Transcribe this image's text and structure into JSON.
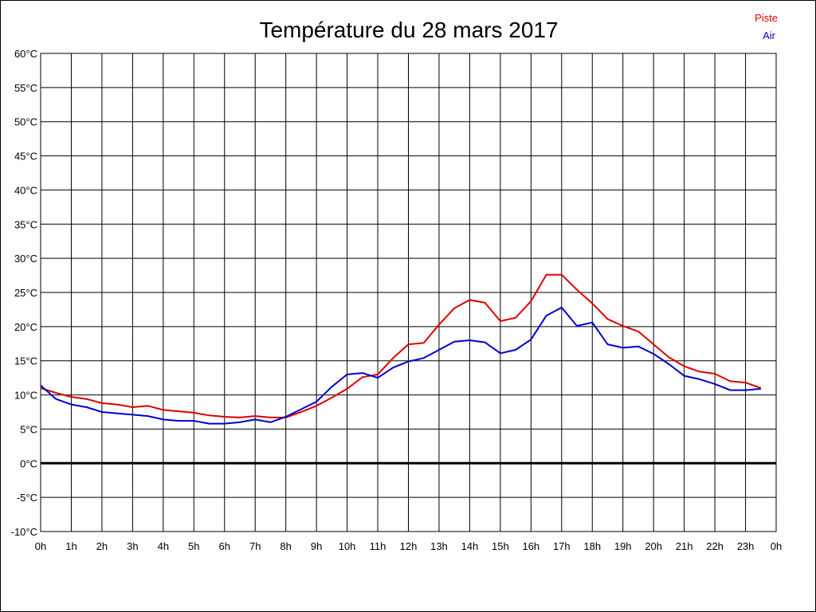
{
  "chart_data": {
    "type": "line",
    "title": "Température du 28 mars 2017",
    "xlabel": "",
    "ylabel": "",
    "x_tick_labels": [
      "0h",
      "1h",
      "2h",
      "3h",
      "4h",
      "5h",
      "6h",
      "7h",
      "8h",
      "9h",
      "10h",
      "11h",
      "12h",
      "13h",
      "14h",
      "15h",
      "16h",
      "17h",
      "18h",
      "19h",
      "20h",
      "21h",
      "22h",
      "23h",
      "0h"
    ],
    "y_tick_labels": [
      "60°C",
      "55°C",
      "50°C",
      "45°C",
      "40°C",
      "35°C",
      "30°C",
      "25°C",
      "20°C",
      "15°C",
      "10°C",
      "5°C",
      "0°C",
      "-5°C",
      "-10°C"
    ],
    "xlim": [
      0,
      24
    ],
    "ylim": [
      -10,
      60
    ],
    "y_ticks": [
      60,
      55,
      50,
      45,
      40,
      35,
      30,
      25,
      20,
      15,
      10,
      5,
      0,
      -5,
      -10
    ],
    "grid": true,
    "legend_placement": "top-right",
    "zero_line": true,
    "series": [
      {
        "name": "Piste",
        "color": "#dd0000",
        "x": [
          0,
          0.5,
          1,
          1.5,
          2,
          2.5,
          3,
          3.5,
          4,
          4.5,
          5,
          5.5,
          6,
          6.5,
          7,
          7.5,
          8,
          8.5,
          9,
          9.5,
          10,
          10.5,
          11,
          11.5,
          12,
          12.5,
          13,
          13.5,
          14,
          14.5,
          15,
          15.5,
          16,
          16.5,
          17,
          17.5,
          18,
          18.5,
          19,
          19.5,
          20,
          20.5,
          21,
          21.5,
          22,
          22.5,
          23,
          23.5
        ],
        "values": [
          11.0,
          10.3,
          9.7,
          9.4,
          8.8,
          8.6,
          8.2,
          8.4,
          7.8,
          7.6,
          7.4,
          7.0,
          6.8,
          6.7,
          6.9,
          6.7,
          6.7,
          7.5,
          8.4,
          9.6,
          10.9,
          12.6,
          13.0,
          15.4,
          17.4,
          17.6,
          20.3,
          22.7,
          23.9,
          23.5,
          20.8,
          21.3,
          23.7,
          27.6,
          27.6,
          25.4,
          23.4,
          21.1,
          20.1,
          19.3,
          17.4,
          15.5,
          14.2,
          13.4,
          13.1,
          12.0,
          11.8,
          11.0
        ]
      },
      {
        "name": "Air",
        "color": "#0000cc",
        "x": [
          0,
          0.5,
          1,
          1.5,
          2,
          2.5,
          3,
          3.5,
          4,
          4.5,
          5,
          5.5,
          6,
          6.5,
          7,
          7.5,
          8,
          8.5,
          9,
          9.5,
          10,
          10.5,
          11,
          11.5,
          12,
          12.5,
          13,
          13.5,
          14,
          14.5,
          15,
          15.5,
          16,
          16.5,
          17,
          17.5,
          18,
          18.5,
          19,
          19.5,
          20,
          20.5,
          21,
          21.5,
          22,
          22.5,
          23,
          23.5
        ],
        "values": [
          11.4,
          9.4,
          8.6,
          8.2,
          7.5,
          7.3,
          7.1,
          6.9,
          6.4,
          6.2,
          6.2,
          5.8,
          5.8,
          6.0,
          6.4,
          6.0,
          6.8,
          7.9,
          9.0,
          11.2,
          13.0,
          13.2,
          12.5,
          14.0,
          14.9,
          15.4,
          16.6,
          17.8,
          18.0,
          17.7,
          16.1,
          16.6,
          18.1,
          21.6,
          22.8,
          20.1,
          20.6,
          17.4,
          16.9,
          17.1,
          16.0,
          14.5,
          12.8,
          12.3,
          11.6,
          10.7,
          10.7,
          10.9
        ]
      }
    ]
  }
}
